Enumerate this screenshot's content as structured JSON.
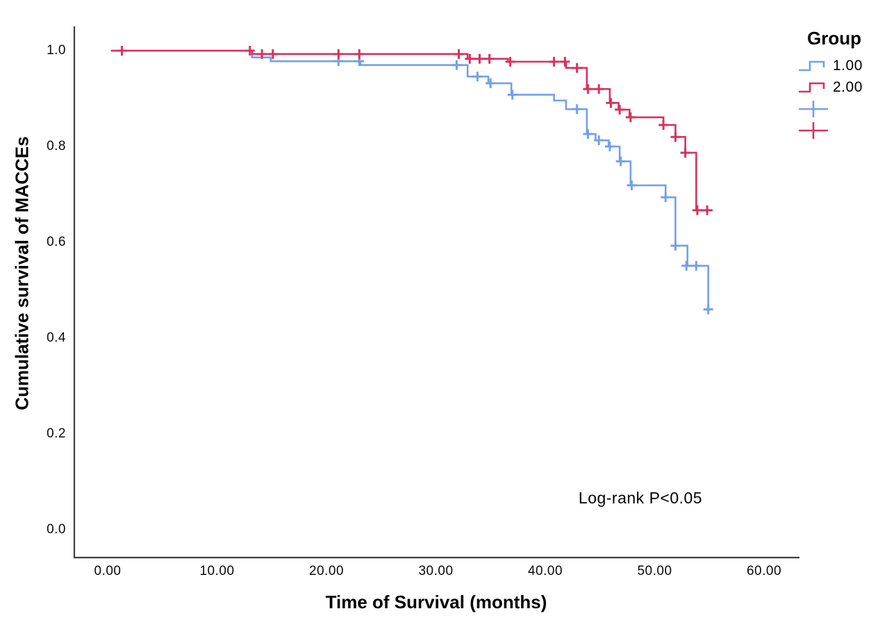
{
  "legend": {
    "title": "Group",
    "entries": [
      {
        "label": "1.00",
        "symbol": "step-line",
        "color_key": "group1"
      },
      {
        "label": "2.00",
        "symbol": "step-line",
        "color_key": "group2"
      },
      {
        "label": "",
        "symbol": "censor-plus",
        "color_key": "group1"
      },
      {
        "label": "",
        "symbol": "censor-plus",
        "color_key": "group2"
      }
    ]
  },
  "colors": {
    "group1": "#74A0E8",
    "group2": "#D5335F",
    "axis": "#3f3f3f",
    "text": "#000000",
    "background": "#ffffff"
  },
  "chart_data": {
    "type": "line",
    "subtype": "kaplan-meier-step",
    "title": "",
    "xlabel": "Time of Survival (months)",
    "ylabel": "Cumulative survival of MACCEs",
    "xlim": [
      0,
      63
    ],
    "ylim": [
      -0.06,
      1.06
    ],
    "grid": false,
    "legend_position": "top-right",
    "annotation": {
      "text": "Log-rank P<0.05",
      "x": 48.7,
      "y": 0.064
    },
    "x_ticks": [
      {
        "v": 0,
        "label": "0.00"
      },
      {
        "v": 10,
        "label": "10.00"
      },
      {
        "v": 20,
        "label": "20.00"
      },
      {
        "v": 30,
        "label": "30.00"
      },
      {
        "v": 40,
        "label": "40.00"
      },
      {
        "v": 50,
        "label": "50.00"
      },
      {
        "v": 60,
        "label": "60.00"
      }
    ],
    "y_ticks": [
      {
        "v": 0.0,
        "label": "0.0"
      },
      {
        "v": 0.2,
        "label": "0.2"
      },
      {
        "v": 0.4,
        "label": "0.4"
      },
      {
        "v": 0.6,
        "label": "0.6"
      },
      {
        "v": 0.8,
        "label": "0.8"
      },
      {
        "v": 1.0,
        "label": "1.0"
      }
    ],
    "series": [
      {
        "name": "1.00",
        "color_key": "group1",
        "end_t": 55.1,
        "steps": [
          [
            0.3,
            1.0
          ],
          [
            13.2,
            0.986
          ],
          [
            14.9,
            0.978
          ],
          [
            23.1,
            0.97
          ],
          [
            32.9,
            0.946
          ],
          [
            34.8,
            0.932
          ],
          [
            36.9,
            0.908
          ],
          [
            40.8,
            0.896
          ],
          [
            41.9,
            0.878
          ],
          [
            43.8,
            0.826
          ],
          [
            44.6,
            0.813
          ],
          [
            45.8,
            0.8
          ],
          [
            46.8,
            0.769
          ],
          [
            47.8,
            0.719
          ],
          [
            51.0,
            0.694
          ],
          [
            51.9,
            0.593
          ],
          [
            53.0,
            0.551
          ],
          [
            54.9,
            0.46
          ]
        ],
        "censors": [
          [
            21.1,
            0.978
          ],
          [
            23.0,
            0.978
          ],
          [
            31.9,
            0.97
          ],
          [
            33.8,
            0.946
          ],
          [
            35.0,
            0.932
          ],
          [
            37.0,
            0.908
          ],
          [
            42.9,
            0.878
          ],
          [
            43.9,
            0.826
          ],
          [
            44.9,
            0.813
          ],
          [
            45.9,
            0.8
          ],
          [
            46.9,
            0.769
          ],
          [
            47.9,
            0.719
          ],
          [
            51.0,
            0.694
          ],
          [
            51.9,
            0.593
          ],
          [
            52.9,
            0.551
          ],
          [
            53.8,
            0.551
          ],
          [
            54.9,
            0.46
          ]
        ]
      },
      {
        "name": "2.00",
        "color_key": "group2",
        "end_t": 55.3,
        "steps": [
          [
            0.3,
            1.0
          ],
          [
            13.2,
            0.993
          ],
          [
            32.9,
            0.983
          ],
          [
            36.6,
            0.977
          ],
          [
            41.9,
            0.964
          ],
          [
            43.8,
            0.92
          ],
          [
            45.9,
            0.891
          ],
          [
            46.7,
            0.877
          ],
          [
            47.7,
            0.861
          ],
          [
            50.8,
            0.845
          ],
          [
            51.9,
            0.82
          ],
          [
            52.8,
            0.787
          ],
          [
            53.8,
            0.667
          ]
        ],
        "censors": [
          [
            1.3,
            1.0
          ],
          [
            13.0,
            1.0
          ],
          [
            14.1,
            0.993
          ],
          [
            15.1,
            0.993
          ],
          [
            21.1,
            0.993
          ],
          [
            23.0,
            0.993
          ],
          [
            32.1,
            0.993
          ],
          [
            33.1,
            0.983
          ],
          [
            34.0,
            0.983
          ],
          [
            34.9,
            0.983
          ],
          [
            36.8,
            0.977
          ],
          [
            40.8,
            0.977
          ],
          [
            41.8,
            0.977
          ],
          [
            42.9,
            0.964
          ],
          [
            43.9,
            0.92
          ],
          [
            44.9,
            0.92
          ],
          [
            46.0,
            0.891
          ],
          [
            46.8,
            0.877
          ],
          [
            47.8,
            0.861
          ],
          [
            50.8,
            0.845
          ],
          [
            51.9,
            0.82
          ],
          [
            52.8,
            0.787
          ],
          [
            53.9,
            0.667
          ],
          [
            54.8,
            0.667
          ]
        ]
      }
    ]
  }
}
